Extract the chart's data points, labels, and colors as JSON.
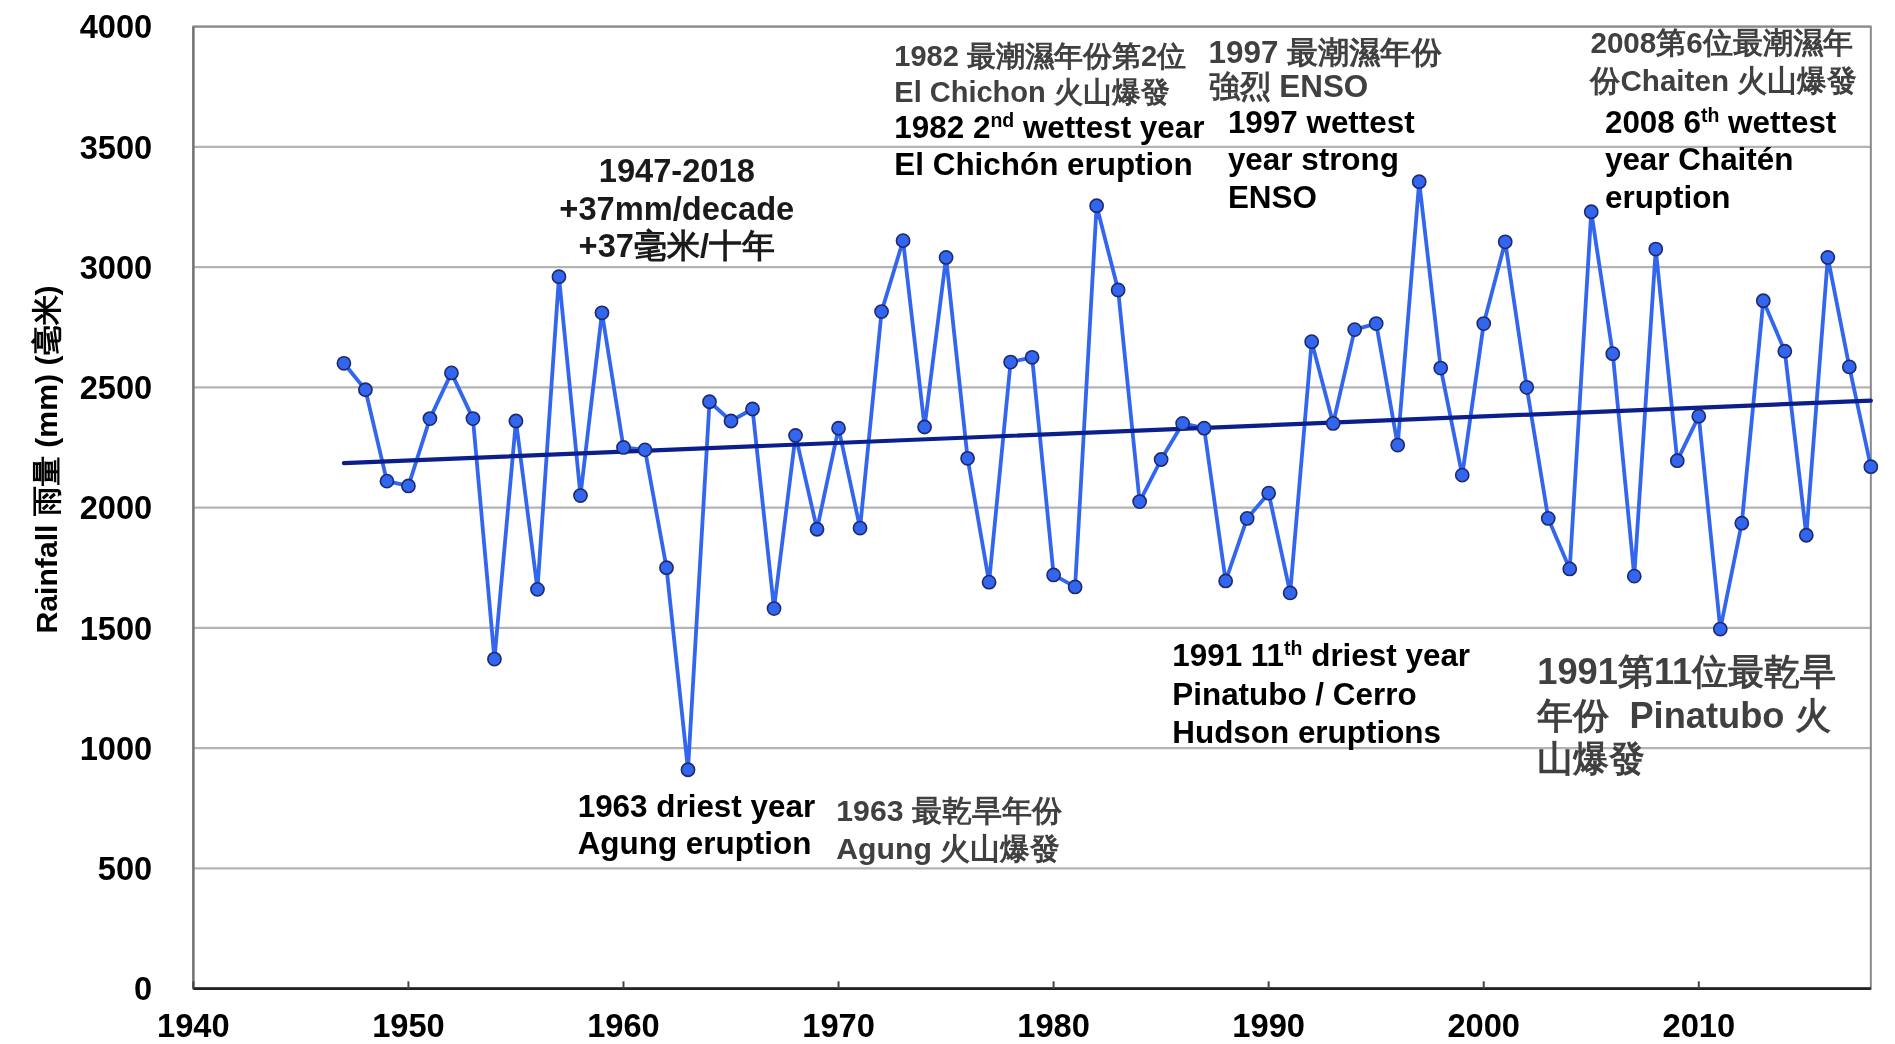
{
  "chart_data": {
    "type": "line",
    "ylabel": "Rainfall 雨量 (mm) (毫米)",
    "xlim": [
      1940,
      2018
    ],
    "xticks": [
      1940,
      1950,
      1960,
      1970,
      1980,
      1990,
      2000,
      2010
    ],
    "ylim": [
      0,
      4000
    ],
    "yticks": [
      0,
      500,
      1000,
      1500,
      2000,
      2500,
      3000,
      3500,
      4000
    ],
    "grid": "y",
    "series": [
      {
        "color": "#3366ee",
        "marker": "circle",
        "x": [
          1947,
          1948,
          1949,
          1950,
          1951,
          1952,
          1953,
          1954,
          1955,
          1956,
          1957,
          1958,
          1959,
          1960,
          1961,
          1962,
          1963,
          1964,
          1965,
          1966,
          1967,
          1968,
          1969,
          1970,
          1971,
          1972,
          1973,
          1974,
          1975,
          1976,
          1977,
          1978,
          1979,
          1980,
          1981,
          1982,
          1983,
          1984,
          1985,
          1986,
          1987,
          1988,
          1989,
          1990,
          1991,
          1992,
          1993,
          1994,
          1995,
          1996,
          1997,
          1998,
          1999,
          2000,
          2001,
          2002,
          2003,
          2004,
          2005,
          2006,
          2007,
          2008,
          2009,
          2010,
          2011,
          2012,
          2013,
          2014,
          2015,
          2016,
          2017,
          2018
        ],
        "values": [
          2600,
          2490,
          2110,
          2090,
          2370,
          2560,
          2370,
          1370,
          2360,
          1660,
          2960,
          2050,
          2810,
          2250,
          2240,
          1750,
          910,
          2440,
          2360,
          2410,
          1580,
          2300,
          1910,
          2330,
          1915,
          2815,
          3110,
          2335,
          3040,
          2205,
          1690,
          2605,
          2625,
          1720,
          1670,
          3255,
          2905,
          2025,
          2200,
          2350,
          2330,
          1695,
          1955,
          2060,
          1645,
          2690,
          2350,
          2740,
          2765,
          2260,
          3355,
          2580,
          2135,
          2765,
          3105,
          2500,
          1955,
          1745,
          3230,
          2640,
          1715,
          3075,
          2195,
          2380,
          1495,
          1935,
          2860,
          2650,
          1885,
          3040,
          2585,
          2170
        ]
      },
      {
        "color": "#0a1e8c",
        "marker": "none",
        "x": [
          1947,
          2018
        ],
        "values": [
          2185,
          2445
        ]
      }
    ],
    "annotations": [
      "1947-2018\n+37mm/decade\n+37毫米/十年",
      "1963 driest year\nAgung eruption",
      "1963 最乾旱年份\nAgung 火山爆發",
      "1982 最潮濕年份第2位\nEl Chichon 火山爆發",
      "1982 2$^{nd}$ wettest year\nEl Chichón eruption",
      "1997 最潮濕年份強烈 ENSO",
      "1997 wettest\nyear strong\nENSO",
      "2008第6位最潮濕年份Chaiten 火山爆發",
      "2008 6$^{th}$ wettest\nyear Chaitén\neruption",
      "1991 11$^{th}$ driest year\nPinatubo / Cerro\nHudson eruptions",
      "1991第11位最乾旱年份  Pinatubo 火山爆發"
    ]
  }
}
